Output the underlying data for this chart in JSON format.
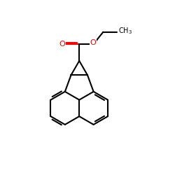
{
  "bg_color": "#ffffff",
  "bond_color": "#000000",
  "bond_lw": 1.5,
  "O_color": "#ff0000",
  "figsize": [
    2.5,
    2.5
  ],
  "dpi": 100,
  "label_fontsize": 7.5,
  "ch3_fontsize": 7.0,
  "xlim": [
    -4.5,
    5.5
  ],
  "ylim": [
    -5.0,
    5.5
  ],
  "B": 1.0
}
